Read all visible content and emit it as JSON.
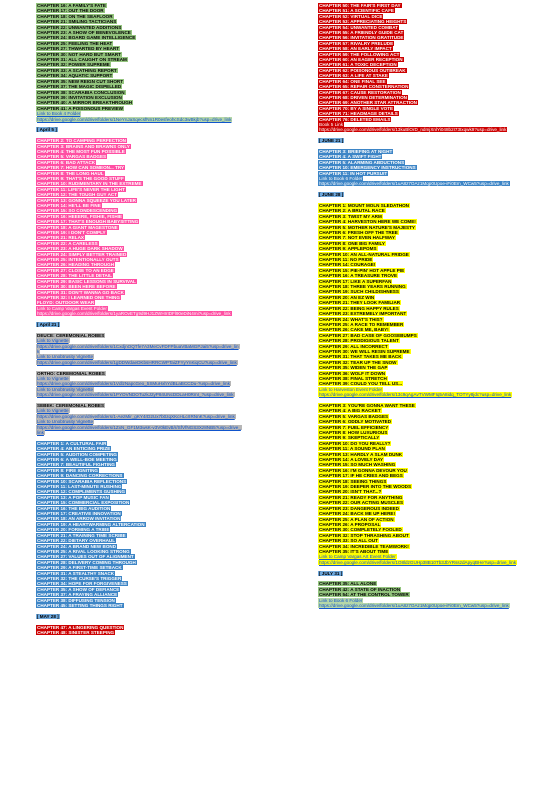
{
  "colors": {
    "green": "#93c47d",
    "pink": "#ff4fa3",
    "red": "#cc0000",
    "blue": "#3d85c6",
    "yellow": "#ffff00",
    "gray": "#b7b7b7"
  },
  "left": [
    {
      "color": "green",
      "lines": [
        "CHAPTER 16: A FAMILY'S FATE",
        "CHAPTER 17: OUT THE DOOR",
        "CHAPTER 18: ON THE SEAFLOOR",
        "CHAPTER 21: SMILING TACTICIANS",
        "CHAPTER 22: UNWANTED ADDITIONS",
        "CHAPTER 23: A SHOW OF BENEVOLENCE",
        "CHAPTER 24: BOARD GAME INTELLIGENCE",
        "CHAPTER 25: FEELING THE HEAT",
        "CHAPTER 27: THWARTED BY HEART",
        "CHAPTER 30: NOT HARD BUT SMART",
        "CHAPTER 31: ALL CAUGHT ON STREAM",
        "CHAPTER 32: POWER SUPREME",
        "CHAPTER 33: A SCATHING REPORT",
        "CHAPTER 34: AQUATIC SUPPORT",
        "CHAPTER 35: NEW REIGN CUT SHORT",
        "CHAPTER 37: THE MAGIC DISPELLED",
        "CHAPTER 38: SCARABIA CONCLUSION",
        "CHAPTER 39: INVITATION EXCLUSION",
        "CHAPTER 40: A MIRROR BREAKTHROUGH",
        "CHAPTER 41: A POISONOUS PREVIEW"
      ],
      "link_label": "Link to Book 4 Folder",
      "url": "https://drive.google.com/drive/folders/1NeYnJaSqecsfNn1R0esfeohcSdc3wBkjb?usp=drive_link"
    },
    {
      "color": "pink",
      "date": "[ April 5 ]",
      "lines": [
        "CHAPTER 2: TO CAMPING PERFECTION",
        "CHAPTER 3: BRAINS AND BRAWNS ONLY",
        "CHAPTER 4: THE MOST FUN POSSIBLE",
        "CHAPTER 5: VARGAS BADGES",
        "CHAPTER 6: BAD ATTACK",
        "CHAPTER 7: HOW CAN SOMEON... TRY",
        "CHAPTER 8: THE LONG HAUL",
        "CHAPTER 9: THAT'S THE GOOD STUFF",
        "CHAPTER 10: RUDIMENTARY IN THE EXTREME",
        "CHAPTER 11: LIFE'S NEVER THE LIGHT",
        "CHAPTER 12: THE TOUGH GUY ACT",
        "CHAPTER 13: GONNA SQUEEZE YOU LATER",
        "CHAPTER 14: HE'LL BE FINE",
        "CHAPTER 15: SO CONDESCENDING",
        "CHAPTER 16: HEEERE, FISHIE, FISHIE",
        "CHAPTER 17: THAT'S ENOUGH BABYSITTING",
        "CHAPTER 18: A GIANT MAGESTONE",
        "CHAPTER 19: I DON'T COMPLY",
        "CHAPTER 21: RELAX",
        "CHAPTER 22: A CARELESS",
        "CHAPTER 23: A HUGE DARK SHADOW",
        "CHAPTER 24: SIMPLY BETTER TRAINED",
        "CHAPTER 25: INTENTIONALLY OUTS",
        "CHAPTER 26: HEADING THROUGH",
        "CHAPTER 27: CLOSE TO AN EDGE",
        "CHAPTER 28: THE LITTLE DETAIL",
        "CHAPTER 29: BASIC LESSONS IN SURVIVAL",
        "CHAPTER 30: BEEN HERE BEFORE",
        "CHAPTER 31: DON'T WANNA GO BACK",
        "CHAPTER 32: I LEARNED ONE THING",
        "FLOYD: OUTDOOR WEAR"
      ],
      "link_label": "Link to Camp Vargas Event Folder",
      "url": "https://drive.google.com/drive/folders/1yaROvETg9d9HJ1ZWHIrIDFl90eDiN4mi?usp=drive_link"
    },
    {
      "color": "gray",
      "date": "[ April 21 ]",
      "lines": [
        "DEUCE: CEREMONIAL ROBES"
      ],
      "link_label": "Link to Vignette",
      "url": "https://drive.google.com/drive/folders/1CxdjnOQTfe7A3MeCvFDFPbuaVBaMGPJai5?usp=drive_link",
      "link_label2": "Link to Unobtrusity Vignette",
      "url2": "https://drive.google.com/drive/folders/1gDDWdaeDKbsHRRCWPTaiZFYyYnKiqCU?usp=drive_link"
    },
    {
      "color": "gray",
      "lines": [
        "ORTHO: CEREMONIAL ROBES"
      ],
      "link_label": "Link to Vignette",
      "url": "https://drive.google.com/drive/folders/1VdlzNapcGeo_5SMuHxhYdBLaBCCDu-?usp=drive_link",
      "link_label2": "Link to Unobtrusity Vignette",
      "url2": "https://drive.google.com/drive/folders/1PYOVNDOTuzkJ2yP84UNcDDLaH0RmI_?usp=drive_link"
    },
    {
      "color": "gray",
      "lines": [
        "SEBEK: CEREMONIAL ROBES"
      ],
      "link_label": "Link to Vignette",
      "url": "https://drive.google.com/drive/folders/1-AezMir_gKY4rD2Ux7b0zqXKcHLcrIRNnK?usp=drive_link",
      "link_label2": "Link to Unobtrusity Vignette",
      "url2": "https://drive.google.com/drive/folders/1ZxN_GF1M3wsK-v3V0kEvB/r/SfVfNGS3Xz8NB5?usp=drive_link"
    },
    {
      "color": "blue",
      "lines": [
        "CHAPTER 1: A CULTURAL FAIR",
        "CHAPTER 4: AN ENTICING PRIZE",
        "CHAPTER 5: AUDITION COMPETING",
        "CHAPTER 6: A WELL-BOE MEETING",
        "CHAPTER 7: BEAUTIFUL FIGHTING",
        "CHAPTER 8: FIRE IGNITING",
        "CHAPTER 9: DANCING CORRECTIONS",
        "CHAPTER 10: SCARABIA REFLECTIONS",
        "CHAPTER 11: LAST-MINUTE RUSHING",
        "CHAPTER 12: COMPLIMENTS GUSHING",
        "CHAPTER 13: A POP MUSIC FAN",
        "CHAPTER 15: COMMERCIAL EXPOSITION",
        "CHAPTER 16: THE BIG AUDITION",
        "CHAPTER 17: CREATIVE INNOVATION",
        "CHAPTER 18: AN ARROW INVITATION",
        "CHAPTER 19: A HEARTWARMING ALTERCATION",
        "CHAPTER 20: FORMING A TRIBE",
        "CHAPTER 21: A TRAINING TIME SCRIBE",
        "CHAPTER 22: DIETARY OVERHAUL",
        "CHAPTER 24: A BRAND NEW BOND",
        "CHAPTER 25: A RIVAL LOOKING STRONG",
        "CHAPTER 27: VALUES OUT OF ALIGNMENT",
        "CHAPTER 28: DELIVERY COMING THROUGH",
        "CHAPTER 29: A FIRST-TIME SETBACK",
        "CHAPTER 31: A STEALTHY SNACK",
        "CHAPTER 32: THE CURSE'S TRIGGER",
        "CHAPTER 34: HOPE FOR FORGIVENESS",
        "CHAPTER 35: A SHOW OF DEFIANCE",
        "CHAPTER 37: A FRAYING ALLIANCE",
        "CHAPTER 38: DIFFUSING TENSION",
        "CHAPTER 45: SETTING THINGS RIGHT"
      ]
    },
    {
      "color": "red",
      "date": "[ MAY 28 ]",
      "lines": [
        "CHAPTER 47: A LINGERING QUESTION",
        "CHAPTER 48: SINISTER STEEPING"
      ]
    }
  ],
  "right": [
    {
      "color": "red",
      "lines": [
        "CHAPTER 50: THE FAIR'S FIRST DAY",
        "CHAPTER 51: A SCIENTIFIC CAFE",
        "CHAPTER 52: VIRTUAL DICE",
        "CHAPTER 53: APPRECIATING HEIGHTS",
        "CHAPTER 54: UNWANTED COMBAT",
        "CHAPTER 55: A FRIENDLY GUIDE CAT",
        "CHAPTER 56: INVITATION GRATITUDE",
        "CHAPTER 57: RIVALRY PRELUDE",
        "CHAPTER 58: AN EARLY IMPACT",
        "CHAPTER 59: THE FOLLOWING ACT",
        "CHAPTER 60: AN EAGER RECEPTION",
        "CHAPTER 61: A TOXIC DECEPTION",
        "CHAPTER 62: POISONOUS OUTBREAK",
        "CHAPTER 63: A LIFE AT STAKE",
        "CHAPTER 64: ONE FINAL SEE",
        "CHAPTER 65: REPAIR CONSTERNATION",
        "CHAPTER 67: CAUSE RESTORATION",
        "CHAPTER 68: DRIVEN DETERMINATION",
        "CHAPTER 69: ANOTHER STAR ATTRACTION",
        "CHAPTER 70: BY A SINGLE VOTE",
        "CHAPTER 71: HEADMAGE DETAILS",
        "CHAPTER 76: DELETED EMAILS"
      ],
      "link_label": "Book 5 Link",
      "url": "https://drive.google.com/drive/folders/13kuBlOrD_ndmjXnlYi048b2I73Ixqwk9?usp=drive_link"
    },
    {
      "color": "blue",
      "date": "[ JUNE 21 ]",
      "lines": [
        "CHAPTER 3: BRIEFING AT NIGHT",
        "CHAPTER 4: A SWIFT FIGHT",
        "CHAPTER 5: ALARMING ABDUCTIONS",
        "CHAPTER 10: EMERGENCY INSTRUCTIONS",
        "CHAPTER 11: IN HOT PURSUIT"
      ],
      "link_label": "Link to Book 6 Folder",
      "url": "https://drive.google.com/drive/folders/1uA8z7OAz1Mqp0Upoe-iFi0Em_WCw5?usp=drive_link"
    },
    {
      "color": "yellow",
      "date": "[ JUNE 28 ]",
      "lines": [
        "CHAPTER 1: MOUNT MOLN SLEDATHON",
        "CHAPTER 2: A BRUTAL RACE",
        "CHAPTER 3: TWIST MY ARM",
        "CHAPTER 4: HARVESTON HERE WE COME!",
        "CHAPTER 5: MOTHER NATURE'S MAJESTY",
        "CHAPTER 6: FRESH OFF THE TREE",
        "CHAPTER 7: NOT EVEN HALFWAY",
        "CHAPTER 8: ONE BIG FAMILY",
        "CHAPTER 9: APPLEPOMS",
        "CHAPTER 10: AN ALL-NATURAL FRIDGE",
        "CHAPTER 11: NO PRIDE",
        "CHAPTER 14: COURAGE!",
        "CHAPTER 15: PIE-PIN' HOT APPLE PIE",
        "CHAPTER 16: A TREASURE TROVE",
        "CHAPTER 17: LIKE A SUPERFAN",
        "CHAPTER 18: THREE YEARS RUNNING",
        "CHAPTER 19: SUCH CHILDISHNESS",
        "CHAPTER 20: AN EZ WIN",
        "CHAPTER 21: THEY LOOK FAMILIAR",
        "CHAPTER 22: BEING HAPPY RULES",
        "CHAPTER 23: EXTREMELY IMPORTANT",
        "CHAPTER 24: WHAT'S THIS?",
        "CHAPTER 25: A RACE TO REMEMBER",
        "CHAPTER 26: CAKE ME, BABY!",
        "CHAPTER 27: BAD CASE OF GOOSEBUMPS",
        "CHAPTER 28: PRODIGIOUS TALENT",
        "CHAPTER 29: ALL INCORRECT",
        "CHAPTER 30: WE WILL RESIN SUPREME",
        "CHAPTER 31: THAT TAKES ME BACK",
        "CHAPTER 32: TEAR UP THE SNOW",
        "CHAPTER 35: WIDEN THE GAP",
        "CHAPTER 36: WOLF IT DOWN",
        "CHAPTER 38: FINAL STRETCH",
        "CHAPTER 39: COULD YOU TELL US..."
      ],
      "link_label": "Link to Harveston Event Folder",
      "url": "https://drive.google.com/drive/folders/13c9qAgAvTVWMFIq5A8idq_TOTYy8jdc?usp=drive_link"
    },
    {
      "color": "yellow",
      "lines": [
        "CHAPTER 3: YOU'RE GONNA WANT THESE",
        "CHAPTER 4: A BIG RACKET",
        "CHAPTER 5: VARGAS BADGES",
        "CHAPTER 6: ODDLY MOTIVATED",
        "CHAPTER 7: FUEL EFFICIENCY",
        "CHAPTER 8: HOW LUXURIOUS",
        "CHAPTER 9: SKEPTICALLY",
        "CHAPTER 10: DO YOU REALLY?",
        "CHAPTER 11: A SOUND PLAN",
        "CHAPTER 13: HARDLY A SLAM DUNK",
        "CHAPTER 14: A LOVELY DAY",
        "CHAPTER 15: SO MUCH WASHING",
        "CHAPTER 16: I'M GONNA DEVOUR YOU",
        "CHAPTER 17: IF HE CRIES AND BEGS",
        "CHAPTER 18: SEEING THINGS",
        "CHAPTER 19: DEEPER INTO THE WOODS",
        "CHAPTER 20: ISN'T THAT...?",
        "CHAPTER 21: READY FOR ANYTHING",
        "CHAPTER 22: OUR ACTING MUSCLES",
        "CHAPTER 23: DANGEROUS INDEED",
        "CHAPTER 24: BACK ME UP HERE!",
        "CHAPTER 25: A PLAN OF ACTION",
        "CHAPTER 26: A PROPOSAL",
        "CHAPTER 30: COMPLETELY FOOLED",
        "CHAPTER 32: STOP THRASHING ABOUT",
        "CHAPTER 33: SO ALL OUT",
        "CHAPTER 34: INCREDIBLE TEAMWORK!",
        "CHAPTER 35: IT'S ABOUT TIME"
      ],
      "link_label": "Link to Camp Vargas Art Event Folder",
      "url": "https://drive.google.com/drive/folders/1O8ldzGUHp38B10Tb3JbYRsszdApyqBHe?usp=drive_link"
    },
    {
      "color": "green",
      "date": "[ JULY 31 ]",
      "lines": [
        "CHAPTER 35: ALL ALONE",
        "CHAPTER 42: A STATE OF INACTION",
        "CHAPTER 54: AT THE CONTROL TOWER"
      ],
      "link_label": "Link to Book 6 Folder",
      "url": "https://drive.google.com/drive/folders/1uA8z7OAz1Mqp0Upoe-iFi0Em_WCw5?usp=drive_link"
    }
  ]
}
